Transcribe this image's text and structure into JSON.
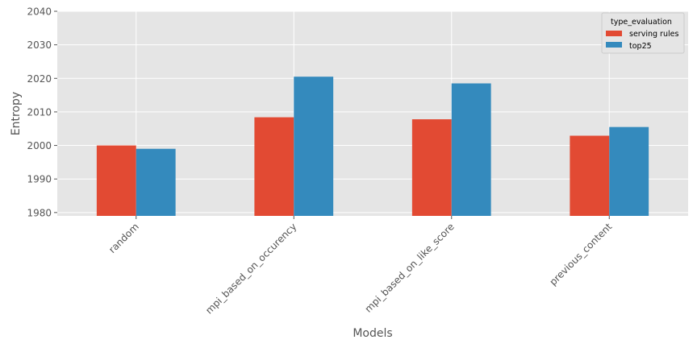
{
  "chart_data": {
    "type": "bar",
    "title": "",
    "xlabel": "Models",
    "ylabel": "Entropy",
    "categories": [
      "random",
      "mpi_based_on_occurency",
      "mpi_based_on_like_score",
      "previous_content"
    ],
    "series": [
      {
        "name": "serving rules",
        "values": [
          2000.0,
          2008.4,
          2007.8,
          2002.9
        ],
        "color": "#E24A33"
      },
      {
        "name": "top25",
        "values": [
          1999.0,
          2020.5,
          2018.5,
          2005.5
        ],
        "color": "#348ABD"
      }
    ],
    "ylim": [
      1979,
      2040
    ],
    "yticks": [
      1980,
      1990,
      2000,
      2010,
      2020,
      2030,
      2040
    ],
    "legend": {
      "title": "type_evaluation",
      "placement": "top-right"
    },
    "grid": true,
    "style": {
      "background": "#E5E5E5",
      "grid_color": "#FFFFFF",
      "text_color": "#555555"
    }
  }
}
